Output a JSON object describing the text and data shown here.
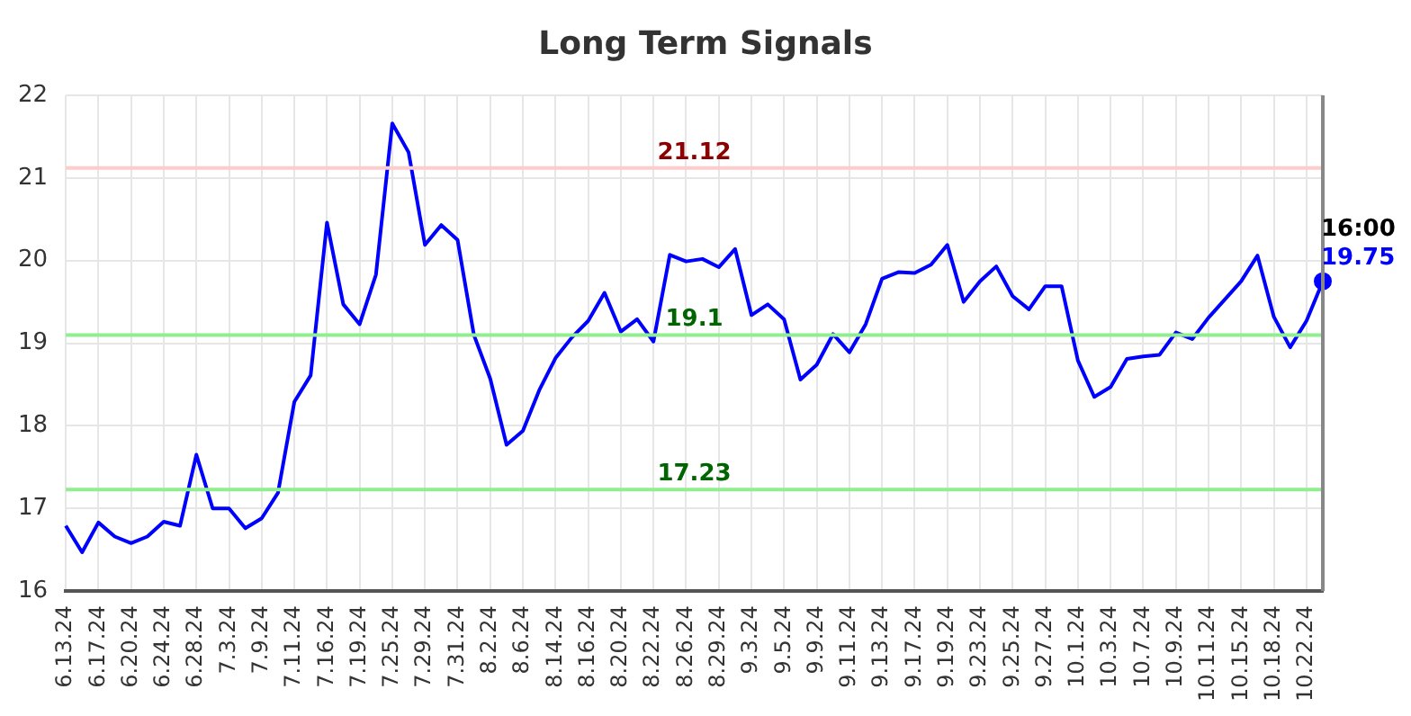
{
  "chart_data": {
    "type": "line",
    "title": "Long Term Signals",
    "categories": [
      "6.13.24",
      null,
      "6.17.24",
      null,
      "6.20.24",
      null,
      "6.24.24",
      null,
      "6.28.24",
      null,
      "7.3.24",
      null,
      "7.9.24",
      null,
      "7.11.24",
      null,
      "7.16.24",
      null,
      "7.19.24",
      null,
      "7.25.24",
      null,
      "7.29.24",
      null,
      "7.31.24",
      null,
      "8.2.24",
      null,
      "8.6.24",
      null,
      "8.14.24",
      null,
      "8.16.24",
      null,
      "8.20.24",
      null,
      "8.22.24",
      null,
      "8.26.24",
      null,
      "8.29.24",
      null,
      "9.3.24",
      null,
      "9.5.24",
      null,
      "9.9.24",
      null,
      "9.11.24",
      null,
      "9.13.24",
      null,
      "9.17.24",
      null,
      "9.19.24",
      null,
      "9.23.24",
      null,
      "9.25.24",
      null,
      "9.27.24",
      null,
      "10.1.24",
      null,
      "10.3.24",
      null,
      "10.7.24",
      null,
      "10.9.24",
      null,
      "10.11.24",
      null,
      "10.15.24",
      null,
      "10.18.24",
      null,
      "10.22.24",
      null
    ],
    "series": [
      {
        "color": "#0000ff",
        "values": [
          16.79,
          16.47,
          16.83,
          16.66,
          16.58,
          16.66,
          16.84,
          16.79,
          17.65,
          17.0,
          17.0,
          16.76,
          16.88,
          17.19,
          18.29,
          18.61,
          20.46,
          19.47,
          19.23,
          19.83,
          21.66,
          21.31,
          20.19,
          20.43,
          20.25,
          19.1,
          18.57,
          17.77,
          17.94,
          18.43,
          18.82,
          19.07,
          19.27,
          19.61,
          19.14,
          19.29,
          19.02,
          20.07,
          19.99,
          20.02,
          19.92,
          20.14,
          19.34,
          19.47,
          19.29,
          18.56,
          18.74,
          19.11,
          18.89,
          19.23,
          19.78,
          19.86,
          19.85,
          19.95,
          20.19,
          19.5,
          19.75,
          19.93,
          19.57,
          19.41,
          19.69,
          19.69,
          18.79,
          18.35,
          18.47,
          18.81,
          18.84,
          18.86,
          19.13,
          19.05,
          19.31,
          19.53,
          19.75,
          20.06,
          19.32,
          18.95,
          19.27,
          19.75
        ],
        "value_labels": [
          null,
          null,
          null,
          null,
          null,
          null,
          null,
          null,
          null,
          null,
          null,
          null,
          null,
          null,
          null,
          null,
          null,
          null,
          null,
          null,
          null,
          null,
          null,
          null,
          null,
          null,
          null,
          null,
          null,
          null,
          null,
          null,
          null,
          null,
          null,
          null,
          null,
          null,
          null,
          null,
          null,
          null,
          null,
          null,
          null,
          null,
          null,
          null,
          null,
          null,
          null,
          null,
          null,
          null,
          null,
          null,
          null,
          null,
          null,
          null,
          null,
          null,
          null,
          null,
          null,
          null,
          null,
          null,
          null,
          null,
          null,
          null,
          null,
          null,
          null,
          null,
          null,
          "19.75"
        ]
      }
    ],
    "ylim": [
      16,
      22
    ],
    "yticks": [
      16,
      17,
      18,
      19,
      20,
      21,
      22
    ],
    "ref_lines": [
      {
        "axis": "y",
        "value": 21.12,
        "label": "21.12",
        "color": "#ffcccc"
      },
      {
        "axis": "y",
        "value": 19.1,
        "label": "19.1",
        "color": "#90ee90"
      },
      {
        "axis": "y",
        "value": 17.23,
        "label": "17.23",
        "color": "#90ee90"
      }
    ],
    "annotations": [
      "16:00"
    ],
    "grid": true,
    "legend": false,
    "marker": "none",
    "line_style": "solid"
  }
}
